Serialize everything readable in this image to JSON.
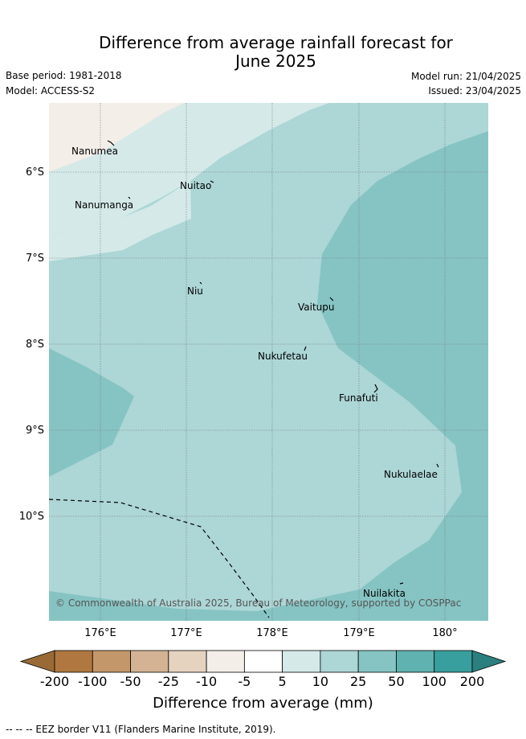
{
  "title_line1": "Difference from average rainfall forecast for",
  "title_line2": "June 2025",
  "base_period": "Base period: 1981-2018",
  "model": "Model: ACCESS-S2",
  "model_run": "Model run: 21/04/2025",
  "issued": "Issued: 23/04/2025",
  "lat_labels": [
    "6°S",
    "7°S",
    "8°S",
    "9°S",
    "10°S"
  ],
  "lon_labels": [
    "176°E",
    "177°E",
    "178°E",
    "179°E",
    "180°"
  ],
  "islands": {
    "nanumea": "Nanumea",
    "nuitao": "Nuitao",
    "nanumanga": "Nanumanga",
    "niu": "Niu",
    "vaitupu": "Vaitupu",
    "nukufetau": "Nukufetau",
    "funafuti": "Funafuti",
    "nukulaelae": "Nukulaelae",
    "nuilakita": "Nuilakita"
  },
  "copyright": "© Commonwealth of Australia 2025, Bureau of Meteorology, supported by COSPPac",
  "colorbar": {
    "ticks": [
      "-200",
      "-100",
      "-50",
      "-25",
      "-10",
      "-5",
      "5",
      "10",
      "25",
      "50",
      "100",
      "200"
    ],
    "colors": [
      "#b07840",
      "#c4976a",
      "#d3b393",
      "#e5d3c0",
      "#f3eee8",
      "#ffffff",
      "#d5e9e9",
      "#add6d6",
      "#86c4c3",
      "#5fb2b0",
      "#389f9e"
    ],
    "low_extend_color": "#9a6a36",
    "high_extend_color": "#2b7f7e",
    "title": "Difference from average (mm)"
  },
  "footer": "--  --  -- EEZ border V11 (Flanders Marine Institute, 2019)."
}
